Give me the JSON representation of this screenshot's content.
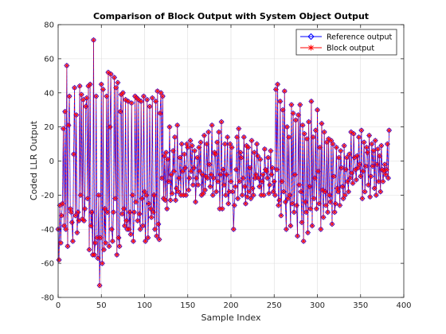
{
  "chart_data": {
    "type": "line",
    "title": "Comparison of Block Output with System Object Output",
    "xlabel": "Sample Index",
    "ylabel": "Coded LLR Output",
    "xlim": [
      0,
      400
    ],
    "ylim": [
      -80,
      80
    ],
    "xticks": [
      0,
      50,
      100,
      150,
      200,
      250,
      300,
      350,
      400
    ],
    "yticks": [
      -80,
      -60,
      -40,
      -20,
      0,
      20,
      40,
      60,
      80
    ],
    "grid": true,
    "legend_position": "top-right",
    "series": [
      {
        "name": "Reference output",
        "color": "#0000ff",
        "marker": "diamond"
      },
      {
        "name": "Block output",
        "color": "#ff0000",
        "marker": "x-cross"
      }
    ],
    "x": [
      0,
      1,
      2,
      3,
      4,
      5,
      6,
      7,
      8,
      9,
      10,
      11,
      12,
      13,
      14,
      15,
      16,
      17,
      18,
      19,
      20,
      21,
      22,
      23,
      24,
      25,
      26,
      27,
      28,
      29,
      30,
      31,
      32,
      33,
      34,
      35,
      36,
      37,
      38,
      39,
      40,
      41,
      42,
      43,
      44,
      45,
      46,
      47,
      48,
      49,
      50,
      51,
      52,
      53,
      54,
      55,
      56,
      57,
      58,
      59,
      60,
      61,
      62,
      63,
      64,
      65,
      66,
      67,
      68,
      69,
      70,
      71,
      72,
      73,
      74,
      75,
      76,
      77,
      78,
      79,
      80,
      81,
      82,
      83,
      84,
      85,
      86,
      87,
      88,
      89,
      90,
      91,
      92,
      93,
      94,
      95,
      96,
      97,
      98,
      99,
      100,
      101,
      102,
      103,
      104,
      105,
      106,
      107,
      108,
      109,
      110,
      111,
      112,
      113,
      114,
      115,
      116,
      117,
      118,
      119,
      120,
      121,
      122,
      123,
      124,
      125,
      126,
      127,
      128,
      129,
      130,
      131,
      132,
      133,
      134,
      135,
      136,
      137,
      138,
      139,
      140,
      141,
      142,
      143,
      144,
      145,
      146,
      147,
      148,
      149,
      150,
      151,
      152,
      153,
      154,
      155,
      156,
      157,
      158,
      159,
      160,
      161,
      162,
      163,
      164,
      165,
      166,
      167,
      168,
      169,
      170,
      171,
      172,
      173,
      174,
      175,
      176,
      177,
      178,
      179,
      180,
      181,
      182,
      183,
      184,
      185,
      186,
      187,
      188,
      189,
      190,
      191,
      192,
      193,
      194,
      195,
      196,
      197,
      198,
      199,
      200,
      201,
      202,
      203,
      204,
      205,
      206,
      207,
      208,
      209,
      210,
      211,
      212,
      213,
      214,
      215,
      216,
      217,
      218,
      219,
      220,
      221,
      222,
      223,
      224,
      225,
      226,
      227,
      228,
      229,
      230,
      231,
      232,
      233,
      234,
      235,
      236,
      237,
      238,
      239,
      240,
      241,
      242,
      243,
      244,
      245,
      246,
      247,
      248,
      249,
      250,
      251,
      252,
      253,
      254,
      255,
      256,
      257,
      258,
      259,
      260,
      261,
      262,
      263,
      264,
      265,
      266,
      267,
      268,
      269,
      270,
      271,
      272,
      273,
      274,
      275,
      276,
      277,
      278,
      279,
      280,
      281,
      282,
      283,
      284,
      285,
      286,
      287,
      288,
      289,
      290,
      291,
      292,
      293,
      294,
      295,
      296,
      297,
      298,
      299,
      300,
      301,
      302,
      303,
      304,
      305,
      306,
      307,
      308,
      309,
      310,
      311,
      312,
      313,
      314,
      315,
      316,
      317,
      318,
      319,
      320,
      321,
      322,
      323,
      324,
      325,
      326,
      327,
      328,
      329,
      330,
      331,
      332,
      333,
      334,
      335,
      336,
      337,
      338,
      339,
      340,
      341,
      342,
      343,
      344,
      345,
      346,
      347,
      348,
      349,
      350,
      351,
      352,
      353,
      354,
      355,
      356,
      357,
      358,
      359,
      360,
      361,
      362,
      363,
      364,
      365,
      366,
      367,
      368,
      369,
      370,
      371,
      372,
      373,
      374,
      375,
      376,
      377,
      378,
      379,
      380,
      381,
      382,
      383
    ],
    "y": [
      -40,
      -58,
      -26,
      -48,
      -32,
      -25,
      19,
      -38,
      29,
      -40,
      56,
      -50,
      21,
      38,
      -28,
      -30,
      -36,
      -47,
      4,
      43,
      -32,
      27,
      -42,
      -30,
      -35,
      44,
      -20,
      39,
      -34,
      36,
      -35,
      -28,
      32,
      37,
      -22,
      44,
      -52,
      45,
      -38,
      -30,
      -55,
      71,
      -55,
      -48,
      38,
      -45,
      -57,
      -20,
      -73,
      -45,
      45,
      -60,
      42,
      -52,
      -28,
      -48,
      38,
      -30,
      52,
      -50,
      20,
      51,
      -40,
      -47,
      -30,
      49,
      -22,
      43,
      -55,
      46,
      -45,
      -50,
      29,
      39,
      -31,
      40,
      -28,
      -38,
      36,
      -35,
      -40,
      35,
      -40,
      -30,
      -43,
      34,
      -20,
      -47,
      -30,
      38,
      -24,
      37,
      -35,
      36,
      -31,
      -40,
      35,
      -22,
      -38,
      38,
      -18,
      -47,
      -20,
      36,
      -45,
      -25,
      32,
      -28,
      -33,
      37,
      -30,
      -20,
      -40,
      35,
      -44,
      41,
      -37,
      -46,
      28,
      40,
      -10,
      38,
      -22,
      3,
      -23,
      5,
      -28,
      1,
      -12,
      20,
      -23,
      -8,
      -19,
      6,
      -6,
      14,
      -23,
      -16,
      21,
      -18,
      -10,
      2,
      -20,
      10,
      -6,
      -20,
      4,
      -4,
      -20,
      10,
      8,
      -17,
      -10,
      12,
      -6,
      9,
      -14,
      -4,
      6,
      -24,
      -10,
      2,
      -14,
      8,
      -6,
      11,
      -20,
      -8,
      -19,
      15,
      -17,
      -9,
      10,
      -10,
      17,
      -2,
      -15,
      -8,
      21,
      -20,
      -10,
      5,
      4,
      -18,
      11,
      -12,
      17,
      -28,
      -8,
      23,
      -28,
      -5,
      -14,
      10,
      -20,
      -8,
      14,
      -25,
      -18,
      10,
      -12,
      8,
      -18,
      -40,
      -26,
      -15,
      -5,
      14,
      -22,
      19,
      -12,
      5,
      2,
      -20,
      -10,
      14,
      -15,
      -25,
      9,
      -21,
      8,
      -18,
      -4,
      -22,
      12,
      -16,
      -20,
      5,
      -10,
      -8,
      10,
      3,
      -10,
      -15,
      1,
      -20,
      -12,
      -8,
      -20,
      7,
      -5,
      -6,
      -10,
      2,
      -19,
      -14,
      6,
      -8,
      -4,
      -18,
      -12,
      -20,
      42,
      -5,
      45,
      -26,
      -23,
      35,
      -32,
      -12,
      30,
      -18,
      41,
      -24,
      -40,
      20,
      -22,
      14,
      -20,
      -38,
      33,
      -25,
      28,
      -30,
      -8,
      24,
      -26,
      -44,
      27,
      -14,
      33,
      -18,
      -36,
      21,
      -47,
      16,
      -24,
      -30,
      13,
      -42,
      23,
      -15,
      -28,
      35,
      -38,
      14,
      -22,
      -10,
      18,
      -28,
      30,
      -6,
      -25,
      8,
      -40,
      22,
      -17,
      -33,
      17,
      -18,
      -26,
      11,
      -30,
      13,
      -20,
      -24,
      12,
      -37,
      10,
      -9,
      -30,
      -25,
      8,
      -16,
      -18,
      2,
      -26,
      6,
      -4,
      -15,
      -22,
      9,
      -20,
      -5,
      2,
      -12,
      -18,
      4,
      -10,
      17,
      -7,
      -13,
      16,
      2,
      -5,
      -11,
      3,
      -4,
      14,
      -2,
      -9,
      18,
      -22,
      -6,
      11,
      -18,
      -3,
      8,
      5,
      -14,
      15,
      -21,
      -9,
      10,
      -3,
      6,
      -16,
      12,
      -20,
      -2,
      7,
      -12,
      3,
      -18,
      9,
      -5,
      -12,
      -6,
      -2,
      -8,
      -5,
      10,
      -10,
      18
    ]
  },
  "legend": {
    "items": [
      "Reference output",
      "Block output"
    ]
  }
}
